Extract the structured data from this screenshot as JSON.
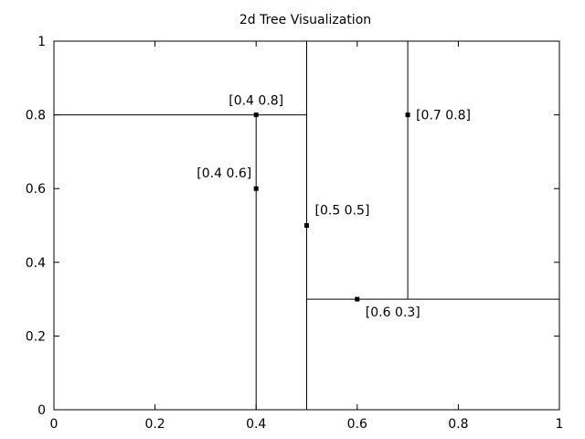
{
  "chart_data": {
    "type": "scatter",
    "title": "2d Tree Visualization",
    "xlabel": "",
    "ylabel": "",
    "xlim": [
      0,
      1
    ],
    "ylim": [
      0,
      1
    ],
    "xticks": [
      "0",
      "0.2",
      "0.4",
      "0.6",
      "0.8",
      "1"
    ],
    "yticks": [
      "0",
      "0.2",
      "0.4",
      "0.6",
      "0.8",
      "1"
    ],
    "grid": false,
    "points": [
      {
        "x": 0.4,
        "y": 0.8,
        "label": "[0.4 0.8]",
        "label_pos": "above"
      },
      {
        "x": 0.4,
        "y": 0.6,
        "label": "[0.4 0.6]",
        "label_pos": "upper-left"
      },
      {
        "x": 0.5,
        "y": 0.5,
        "label": "[0.5 0.5]",
        "label_pos": "upper-right"
      },
      {
        "x": 0.7,
        "y": 0.8,
        "label": "[0.7 0.8]",
        "label_pos": "right"
      },
      {
        "x": 0.6,
        "y": 0.3,
        "label": "[0.6 0.3]",
        "label_pos": "lower-right"
      }
    ],
    "splits": [
      {
        "orientation": "vertical",
        "at": 0.5,
        "from": 0,
        "to": 1
      },
      {
        "orientation": "horizontal",
        "at": 0.8,
        "from": 0,
        "to": 0.5
      },
      {
        "orientation": "vertical",
        "at": 0.4,
        "from": 0,
        "to": 0.8
      },
      {
        "orientation": "horizontal",
        "at": 0.3,
        "from": 0.5,
        "to": 1
      },
      {
        "orientation": "vertical",
        "at": 0.7,
        "from": 0.3,
        "to": 1
      }
    ],
    "colors": {
      "line": "#000000",
      "point": "#000000",
      "background": "#ffffff"
    }
  }
}
